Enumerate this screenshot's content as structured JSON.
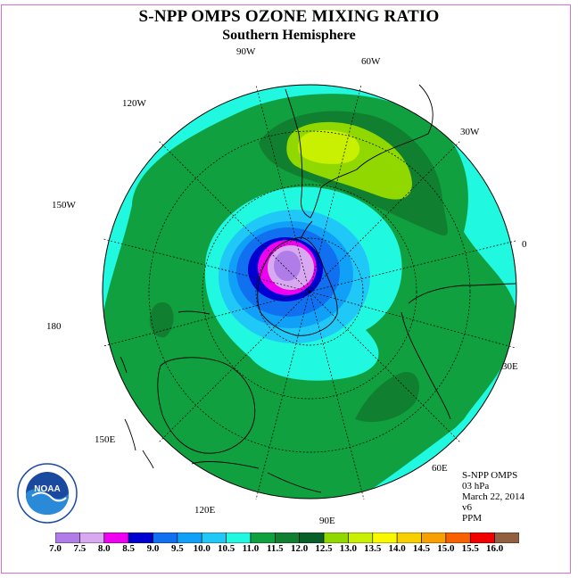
{
  "title": "S-NPP OMPS OZONE MIXING RATIO",
  "subtitle": "Southern Hemisphere",
  "longitude_labels": {
    "lon_90w": "90W",
    "lon_60w": "60W",
    "lon_30w": "30W",
    "lon_120w": "120W",
    "lon_150w": "150W",
    "lon_0": "0",
    "lon_180": "180",
    "lon_30e": "30E",
    "lon_150e": "150E",
    "lon_60e": "60E",
    "lon_120e": "120E",
    "lon_90e": "90E"
  },
  "info": {
    "instrument": "S-NPP OMPS",
    "level": "03 hPa",
    "date": "March 22, 2014",
    "version": "v6",
    "units": "PPM"
  },
  "logo": {
    "text": "NOAA",
    "icon": "noaa-logo"
  },
  "colorbar": {
    "ticks": [
      "7.0",
      "7.5",
      "8.0",
      "8.5",
      "9.0",
      "9.5",
      "10.0",
      "10.5",
      "11.0",
      "11.5",
      "12.0",
      "12.5",
      "13.0",
      "13.5",
      "14.0",
      "14.5",
      "15.0",
      "15.5",
      "16.0"
    ],
    "colors": [
      "#b07ce8",
      "#d8a8f0",
      "#f000f0",
      "#0000d0",
      "#1070f0",
      "#10a0f8",
      "#20c8f8",
      "#20f8e0",
      "#10a040",
      "#108030",
      "#086028",
      "#90d800",
      "#c8f000",
      "#f8f800",
      "#f8d000",
      "#f8a000",
      "#f86000",
      "#f00000",
      "#906040"
    ]
  },
  "field_colors": {
    "background": "#20f8e0",
    "band_11": "#10a040",
    "band_11_5": "#108030",
    "band_12": "#90d800",
    "band_12_5": "#c8f000",
    "hole_10_5": "#20c8f8",
    "hole_10": "#10a0f8",
    "hole_9_5": "#1070f0",
    "hole_9": "#0000d0",
    "hole_8_5": "#f000f0",
    "hole_8": "#d8a8f0",
    "hole_7_5": "#b07ce8"
  }
}
